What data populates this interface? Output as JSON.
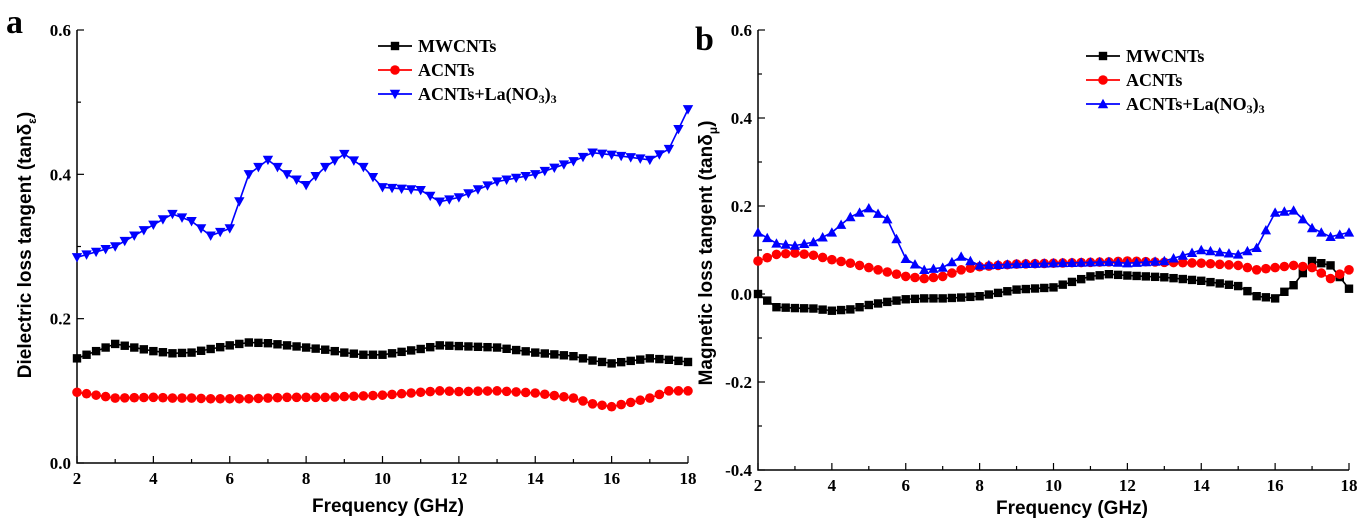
{
  "chart_data": [
    {
      "panel": "a",
      "type": "line",
      "xlabel": "Frequency (GHz)",
      "ylabel": "Dielectric loss tangent (tanδ",
      "ylabel_sub": "ε",
      "ylabel_close": ")",
      "xlim": [
        2,
        18
      ],
      "ylim": [
        0.0,
        0.6
      ],
      "xticks": [
        2,
        4,
        6,
        8,
        10,
        12,
        14,
        16,
        18
      ],
      "yticks": [
        0.0,
        0.2,
        0.4,
        0.6
      ],
      "ytick_labels": [
        "0.0",
        "0.2",
        "0.4",
        "0.6"
      ],
      "legend_position": "top-right",
      "x": [
        2,
        3,
        4,
        4.5,
        5,
        5.5,
        6,
        6.5,
        7,
        7.5,
        8,
        8.5,
        9,
        9.5,
        10,
        11,
        11.5,
        12,
        13,
        14,
        15,
        15.5,
        16,
        17,
        17.5,
        18
      ],
      "series": [
        {
          "name": "MWCNTs",
          "color": "#000000",
          "marker": "square",
          "values": [
            0.145,
            0.165,
            0.155,
            0.152,
            0.153,
            0.158,
            0.163,
            0.167,
            0.166,
            0.163,
            0.16,
            0.157,
            0.153,
            0.15,
            0.15,
            0.158,
            0.163,
            0.162,
            0.16,
            0.153,
            0.148,
            0.142,
            0.138,
            0.145,
            0.143,
            0.14
          ]
        },
        {
          "name": "ACNTs",
          "color": "#ff0000",
          "marker": "circle",
          "values": [
            0.098,
            0.09,
            0.091,
            0.09,
            0.09,
            0.089,
            0.089,
            0.089,
            0.09,
            0.091,
            0.091,
            0.091,
            0.092,
            0.093,
            0.094,
            0.098,
            0.1,
            0.099,
            0.1,
            0.097,
            0.09,
            0.082,
            0.078,
            0.09,
            0.1,
            0.1
          ]
        },
        {
          "name": "ACNTs+La(NO",
          "name_sub": "3",
          "name_close": ")",
          "name_sub2": "3",
          "color": "#0000ff",
          "marker": "triangle-down",
          "values": [
            0.285,
            0.3,
            0.33,
            0.345,
            0.335,
            0.315,
            0.325,
            0.4,
            0.42,
            0.4,
            0.385,
            0.41,
            0.428,
            0.41,
            0.382,
            0.378,
            0.362,
            0.368,
            0.39,
            0.4,
            0.418,
            0.43,
            0.427,
            0.42,
            0.435,
            0.49
          ]
        }
      ]
    },
    {
      "panel": "b",
      "type": "line",
      "xlabel": "Frequency (GHz)",
      "ylabel": "Magnetic loss tangent (tanδ",
      "ylabel_sub": "μ",
      "ylabel_close": ")",
      "xlim": [
        2,
        18
      ],
      "ylim": [
        -0.4,
        0.6
      ],
      "xticks": [
        2,
        4,
        6,
        8,
        10,
        12,
        14,
        16,
        18
      ],
      "yticks": [
        -0.4,
        -0.2,
        0.0,
        0.2,
        0.4,
        0.6
      ],
      "ytick_labels": [
        "-0.4",
        "-0.2",
        "0.0",
        "0.2",
        "0.4",
        "0.6"
      ],
      "legend_position": "top-right",
      "x": [
        2,
        2.5,
        3,
        3.5,
        4,
        4.5,
        5,
        5.5,
        6,
        6.5,
        7,
        7.5,
        8,
        9,
        10,
        11,
        11.5,
        12,
        13,
        14,
        15,
        15.5,
        16,
        16.5,
        17,
        17.5,
        18
      ],
      "series": [
        {
          "name": "MWCNTs",
          "color": "#000000",
          "marker": "square",
          "values": [
            0.0,
            -0.03,
            -0.032,
            -0.033,
            -0.038,
            -0.035,
            -0.025,
            -0.018,
            -0.012,
            -0.01,
            -0.01,
            -0.008,
            -0.005,
            0.01,
            0.015,
            0.04,
            0.045,
            0.042,
            0.038,
            0.03,
            0.018,
            -0.005,
            -0.01,
            0.02,
            0.075,
            0.065,
            0.012
          ]
        },
        {
          "name": "ACNTs",
          "color": "#ff0000",
          "marker": "circle",
          "values": [
            0.075,
            0.09,
            0.093,
            0.088,
            0.078,
            0.07,
            0.06,
            0.05,
            0.04,
            0.035,
            0.04,
            0.055,
            0.062,
            0.068,
            0.07,
            0.072,
            0.073,
            0.075,
            0.072,
            0.07,
            0.065,
            0.055,
            0.06,
            0.065,
            0.06,
            0.035,
            0.055
          ]
        },
        {
          "name": "ACNTs+La(NO",
          "name_sub": "3",
          "name_close": ")",
          "name_sub2": "3",
          "color": "#0000ff",
          "marker": "triangle-up",
          "values": [
            0.14,
            0.115,
            0.11,
            0.118,
            0.14,
            0.175,
            0.195,
            0.17,
            0.08,
            0.055,
            0.06,
            0.085,
            0.065,
            0.068,
            0.07,
            0.072,
            0.073,
            0.07,
            0.075,
            0.1,
            0.09,
            0.105,
            0.185,
            0.19,
            0.15,
            0.13,
            0.14
          ]
        }
      ]
    }
  ]
}
